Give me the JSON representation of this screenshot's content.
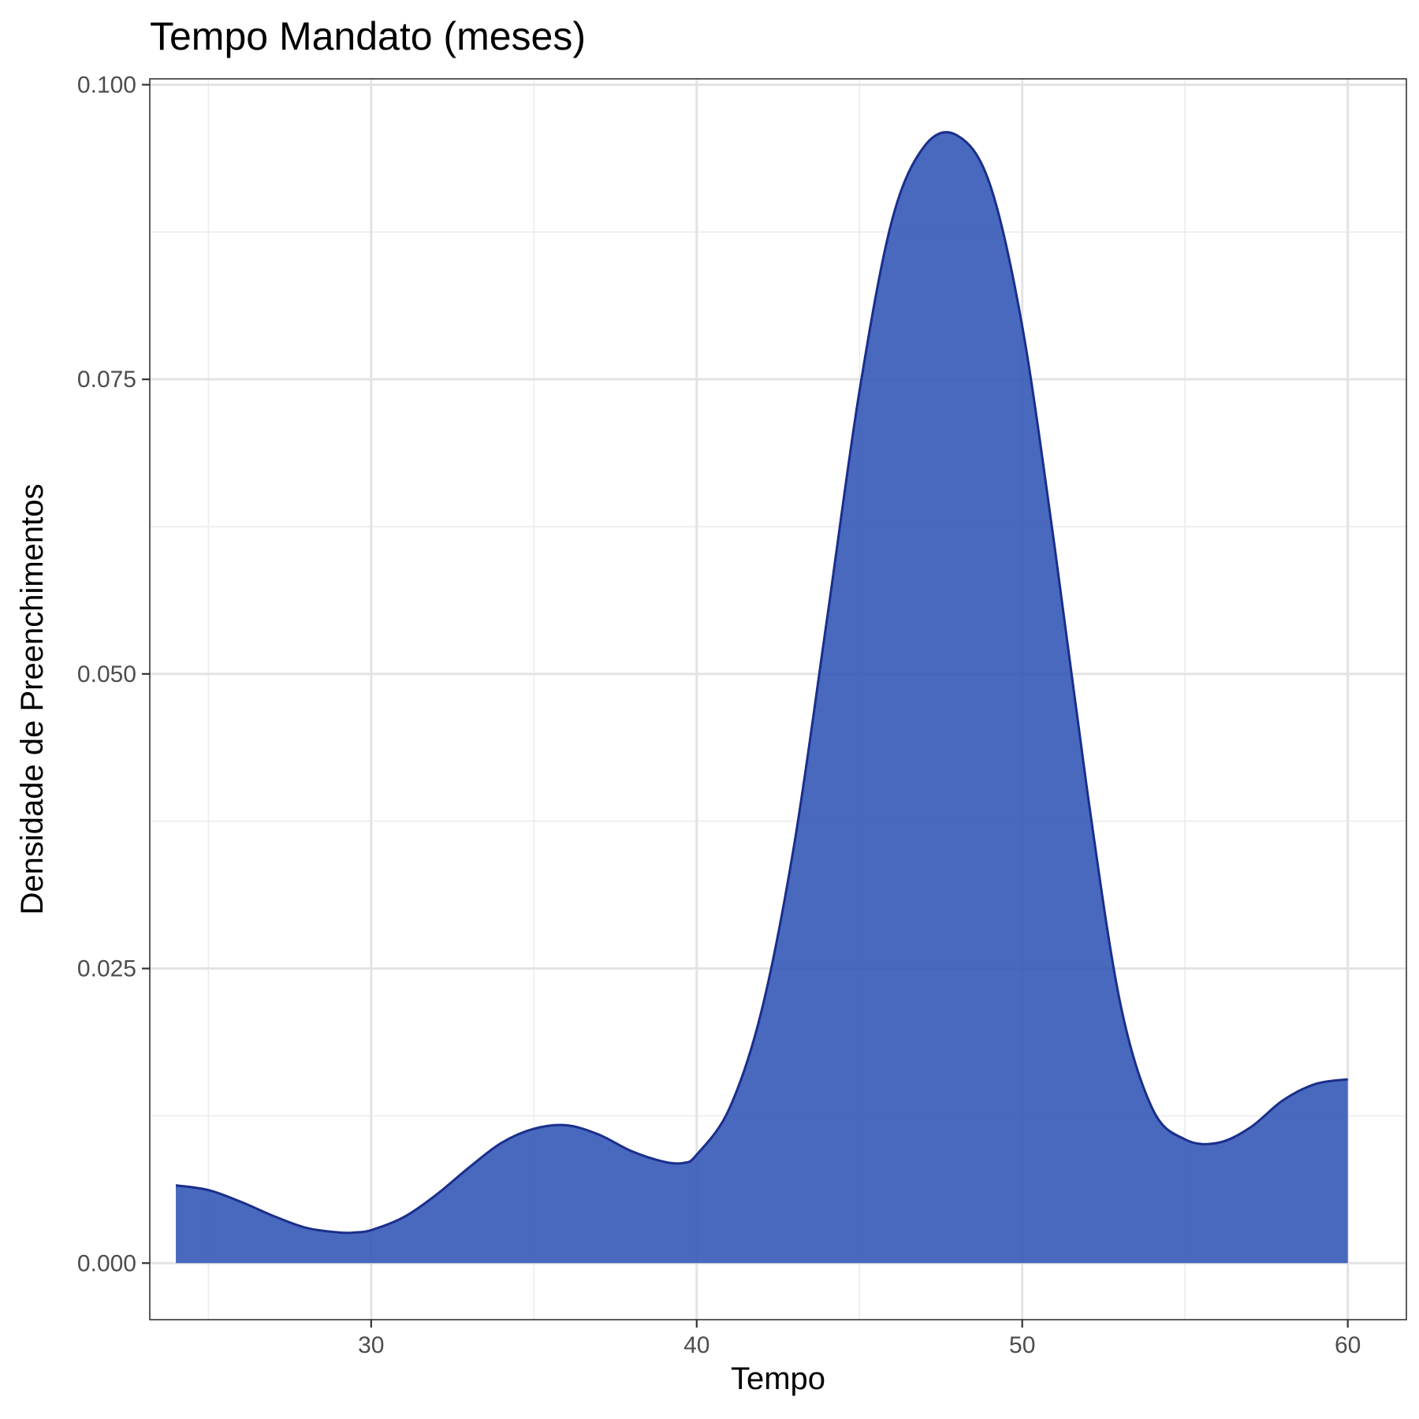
{
  "chart_data": {
    "type": "area",
    "title": "Tempo Mandato (meses)",
    "xlabel": "Tempo",
    "ylabel": "Densidade de Preenchimentos",
    "xlim": [
      23.2,
      61.8
    ],
    "ylim": [
      -0.0048,
      0.1005
    ],
    "x_ticks": [
      30,
      40,
      50,
      60
    ],
    "x_tick_labels": [
      "30",
      "40",
      "50",
      "60"
    ],
    "x_minor_ticks": [
      25,
      35,
      45,
      55
    ],
    "y_ticks": [
      0,
      0.025,
      0.05,
      0.075,
      0.1
    ],
    "y_tick_labels": [
      "0.000",
      "0.025",
      "0.050",
      "0.075",
      "0.100"
    ],
    "y_minor_ticks": [
      0.0125,
      0.0375,
      0.0625,
      0.0875
    ],
    "grid": true,
    "fill_color": "#2F54B5",
    "fill_opacity": 0.88,
    "line_color": "#1A2E8C",
    "series": [
      {
        "x": [
          24.0,
          25.0,
          26.0,
          27.0,
          28.0,
          29.0,
          29.5,
          30.0,
          31.0,
          32.0,
          33.0,
          34.0,
          35.0,
          36.0,
          37.0,
          38.0,
          39.0,
          39.6,
          40.0,
          41.0,
          42.0,
          43.0,
          44.0,
          45.0,
          46.0,
          47.0,
          48.0,
          49.0,
          50.0,
          51.0,
          52.0,
          53.0,
          54.0,
          55.0,
          56.0,
          57.0,
          58.0,
          59.0,
          60.0
        ],
        "y": [
          0.0066,
          0.0062,
          0.0052,
          0.004,
          0.003,
          0.0026,
          0.0026,
          0.0028,
          0.0039,
          0.0058,
          0.0081,
          0.0102,
          0.0114,
          0.0117,
          0.0109,
          0.0095,
          0.0086,
          0.0085,
          0.0092,
          0.0131,
          0.0215,
          0.0356,
          0.0546,
          0.074,
          0.0885,
          0.0948,
          0.0957,
          0.0916,
          0.0795,
          0.0607,
          0.04,
          0.0222,
          0.0131,
          0.0105,
          0.0102,
          0.0115,
          0.0138,
          0.0152,
          0.0156
        ]
      }
    ]
  }
}
